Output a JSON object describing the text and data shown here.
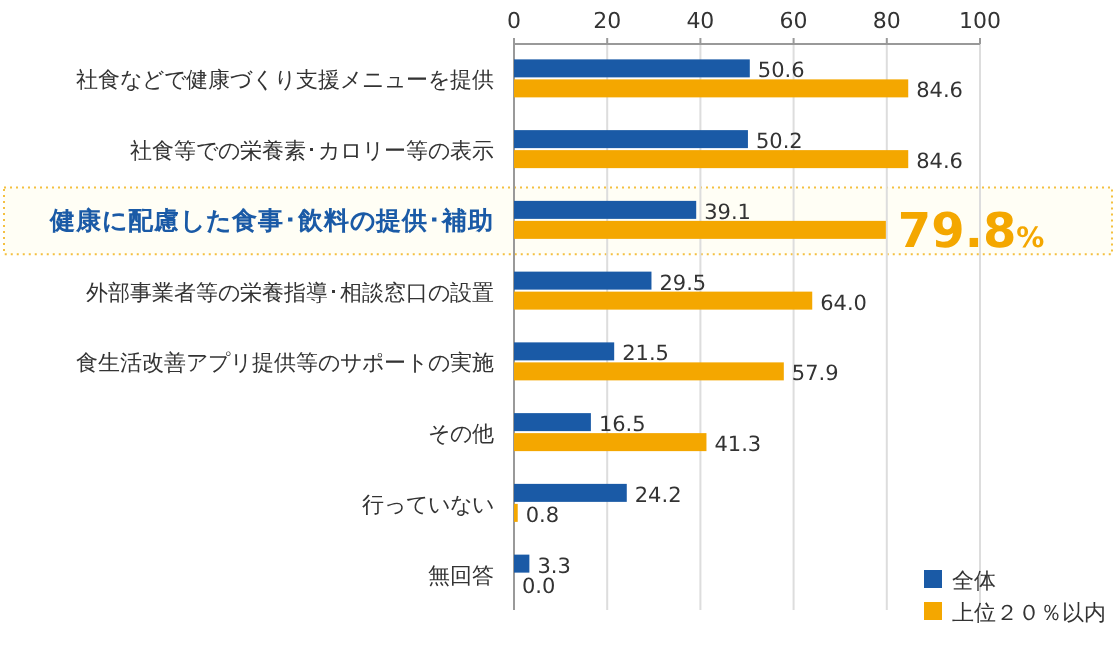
{
  "chart_data": {
    "type": "bar",
    "orientation": "horizontal",
    "categories": [
      "社食などで健康づくり支援メニューを提供",
      "社食等での栄養素･カロリー等の表示",
      "健康に配慮した食事･飲料の提供･補助",
      "外部事業者等の栄養指導･相談窓口の設置",
      "食生活改善アプリ提供等のサポートの実施",
      "その他",
      "行っていない",
      "無回答"
    ],
    "series": [
      {
        "name": "全体",
        "color": "#1a5aa6",
        "values": [
          50.6,
          50.2,
          39.1,
          29.5,
          21.5,
          16.5,
          24.2,
          3.3
        ],
        "value_labels": [
          "50.6",
          "50.2",
          "39.1",
          "29.5",
          "21.5",
          "16.5",
          "24.2",
          "3.3"
        ]
      },
      {
        "name": "上位２０％以内",
        "color": "#f4a700",
        "values": [
          84.6,
          84.6,
          79.8,
          64.0,
          57.9,
          41.3,
          0.8,
          0.0
        ],
        "value_labels": [
          "84.6",
          "84.6",
          "79.8%",
          "64.0",
          "57.9",
          "41.3",
          "0.8",
          "0.0"
        ]
      }
    ],
    "xlim": [
      0,
      100
    ],
    "xticks": [
      0,
      20,
      40,
      60,
      80,
      100
    ],
    "grid": "x",
    "legend": "bottom right"
  }
}
